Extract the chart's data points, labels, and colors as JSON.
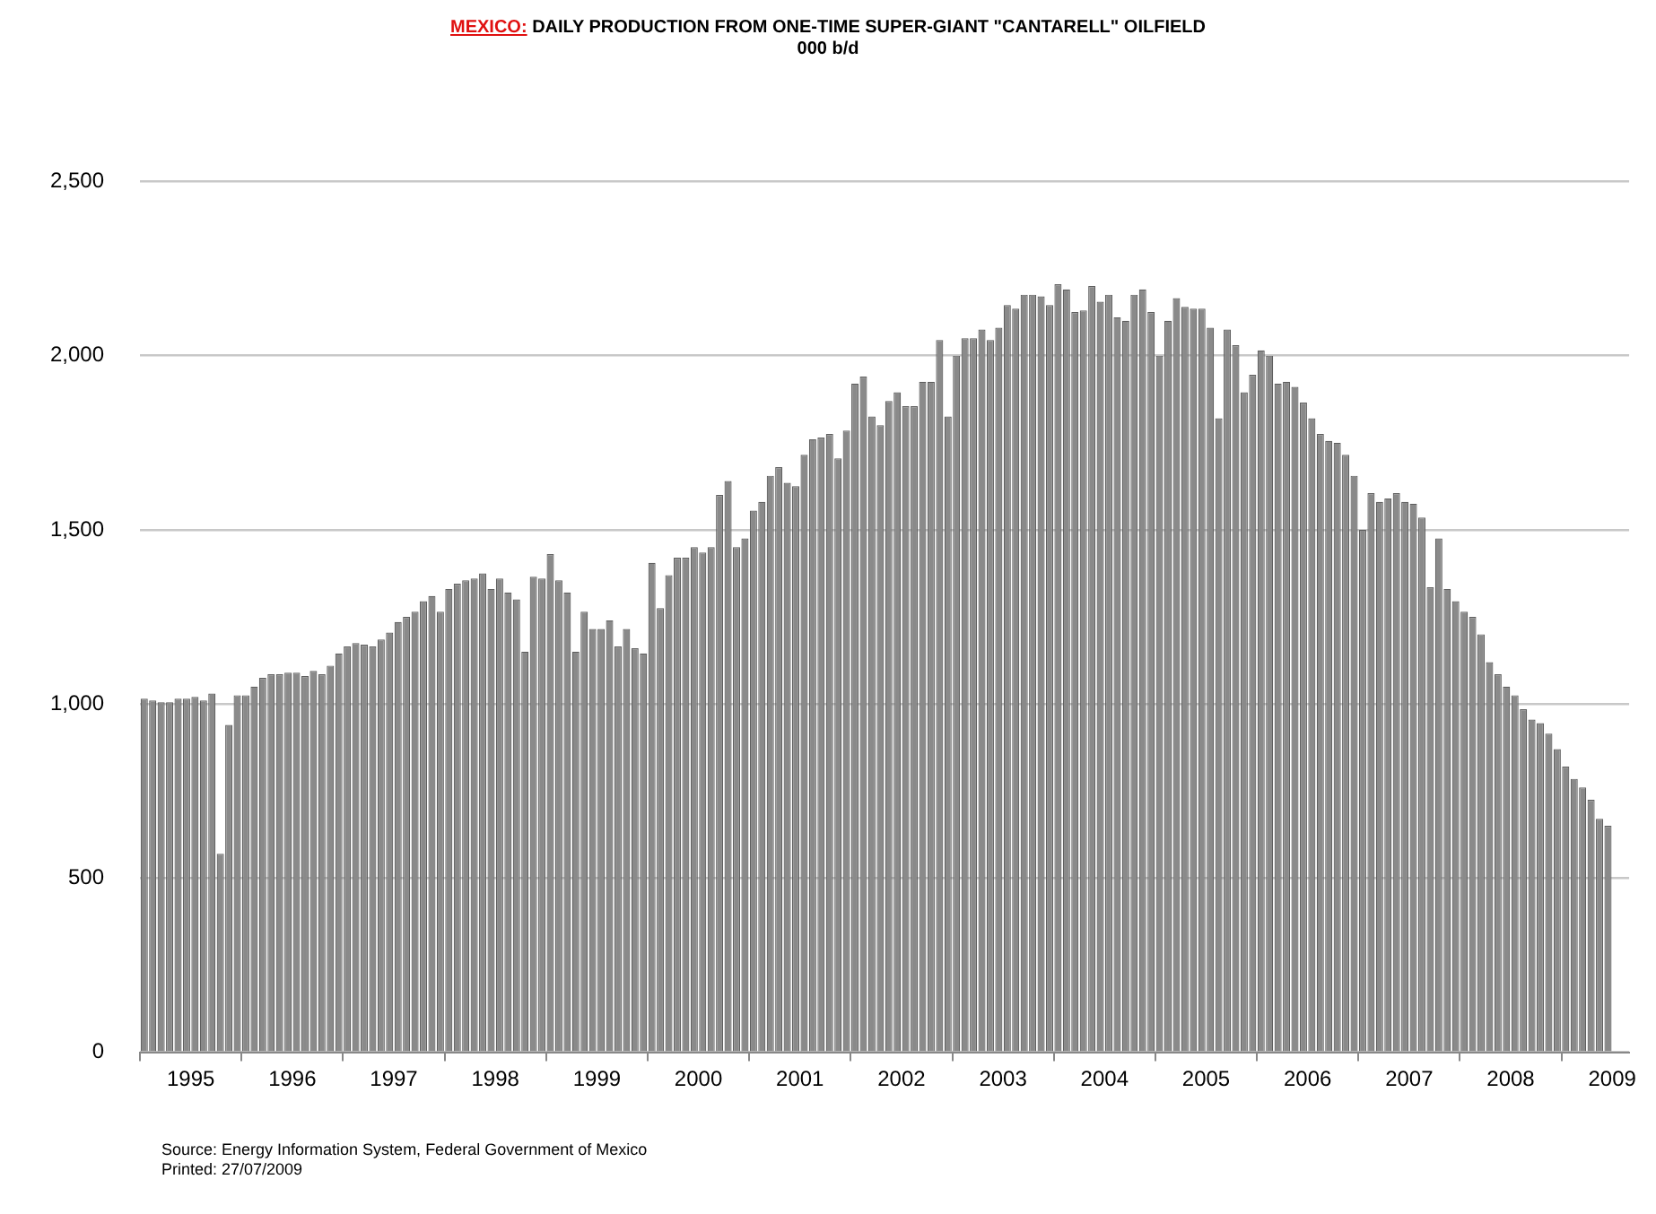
{
  "chart_data": {
    "type": "bar",
    "title": "MEXICO: DAILY PRODUCTION FROM ONE-TIME SUPER-GIANT \"CANTARELL\" OILFIELD",
    "subtitle": "000 b/d",
    "x": [
      "1995-01",
      "1995-02",
      "1995-03",
      "1995-04",
      "1995-05",
      "1995-06",
      "1995-07",
      "1995-08",
      "1995-09",
      "1995-10",
      "1995-11",
      "1995-12",
      "1996-01",
      "1996-02",
      "1996-03",
      "1996-04",
      "1996-05",
      "1996-06",
      "1996-07",
      "1996-08",
      "1996-09",
      "1996-10",
      "1996-11",
      "1996-12",
      "1997-01",
      "1997-02",
      "1997-03",
      "1997-04",
      "1997-05",
      "1997-06",
      "1997-07",
      "1997-08",
      "1997-09",
      "1997-10",
      "1997-11",
      "1997-12",
      "1998-01",
      "1998-02",
      "1998-03",
      "1998-04",
      "1998-05",
      "1998-06",
      "1998-07",
      "1998-08",
      "1998-09",
      "1998-10",
      "1998-11",
      "1998-12",
      "1999-01",
      "1999-02",
      "1999-03",
      "1999-04",
      "1999-05",
      "1999-06",
      "1999-07",
      "1999-08",
      "1999-09",
      "1999-10",
      "1999-11",
      "1999-12",
      "2000-01",
      "2000-02",
      "2000-03",
      "2000-04",
      "2000-05",
      "2000-06",
      "2000-07",
      "2000-08",
      "2000-09",
      "2000-10",
      "2000-11",
      "2000-12",
      "2001-01",
      "2001-02",
      "2001-03",
      "2001-04",
      "2001-05",
      "2001-06",
      "2001-07",
      "2001-08",
      "2001-09",
      "2001-10",
      "2001-11",
      "2001-12",
      "2002-01",
      "2002-02",
      "2002-03",
      "2002-04",
      "2002-05",
      "2002-06",
      "2002-07",
      "2002-08",
      "2002-09",
      "2002-10",
      "2002-11",
      "2002-12",
      "2003-01",
      "2003-02",
      "2003-03",
      "2003-04",
      "2003-05",
      "2003-06",
      "2003-07",
      "2003-08",
      "2003-09",
      "2003-10",
      "2003-11",
      "2003-12",
      "2004-01",
      "2004-02",
      "2004-03",
      "2004-04",
      "2004-05",
      "2004-06",
      "2004-07",
      "2004-08",
      "2004-09",
      "2004-10",
      "2004-11",
      "2004-12",
      "2005-01",
      "2005-02",
      "2005-03",
      "2005-04",
      "2005-05",
      "2005-06",
      "2005-07",
      "2005-08",
      "2005-09",
      "2005-10",
      "2005-11",
      "2005-12",
      "2006-01",
      "2006-02",
      "2006-03",
      "2006-04",
      "2006-05",
      "2006-06",
      "2006-07",
      "2006-08",
      "2006-09",
      "2006-10",
      "2006-11",
      "2006-12",
      "2007-01",
      "2007-02",
      "2007-03",
      "2007-04",
      "2007-05",
      "2007-06",
      "2007-07",
      "2007-08",
      "2007-09",
      "2007-10",
      "2007-11",
      "2007-12",
      "2008-01",
      "2008-02",
      "2008-03",
      "2008-04",
      "2008-05",
      "2008-06",
      "2008-07",
      "2008-08",
      "2008-09",
      "2008-10",
      "2008-11",
      "2008-12",
      "2009-01",
      "2009-02",
      "2009-03",
      "2009-04",
      "2009-05",
      "2009-06"
    ],
    "values": [
      1015,
      1010,
      1005,
      1005,
      1015,
      1015,
      1020,
      1010,
      1030,
      570,
      940,
      1025,
      1025,
      1050,
      1075,
      1085,
      1085,
      1090,
      1090,
      1080,
      1095,
      1085,
      1110,
      1145,
      1165,
      1175,
      1170,
      1165,
      1185,
      1205,
      1235,
      1250,
      1265,
      1295,
      1310,
      1265,
      1330,
      1345,
      1355,
      1360,
      1375,
      1330,
      1360,
      1320,
      1300,
      1150,
      1365,
      1360,
      1430,
      1355,
      1320,
      1150,
      1265,
      1215,
      1215,
      1240,
      1165,
      1215,
      1160,
      1145,
      1405,
      1275,
      1370,
      1420,
      1420,
      1450,
      1435,
      1450,
      1600,
      1640,
      1450,
      1475,
      1555,
      1580,
      1655,
      1680,
      1635,
      1625,
      1715,
      1760,
      1765,
      1775,
      1705,
      1785,
      1920,
      1940,
      1825,
      1800,
      1870,
      1895,
      1855,
      1855,
      1925,
      1925,
      2045,
      1825,
      2000,
      2050,
      2050,
      2075,
      2045,
      2080,
      2145,
      2135,
      2175,
      2175,
      2170,
      2145,
      2205,
      2190,
      2125,
      2130,
      2200,
      2155,
      2175,
      2110,
      2100,
      2175,
      2190,
      2125,
      2000,
      2100,
      2165,
      2140,
      2135,
      2135,
      2080,
      1820,
      2075,
      2030,
      1895,
      1945,
      2015,
      2000,
      1920,
      1925,
      1910,
      1865,
      1820,
      1775,
      1755,
      1750,
      1715,
      1655,
      1500,
      1605,
      1580,
      1590,
      1605,
      1580,
      1575,
      1535,
      1335,
      1475,
      1330,
      1295,
      1265,
      1250,
      1200,
      1120,
      1085,
      1050,
      1025,
      985,
      955,
      945,
      915,
      870,
      820,
      785,
      760,
      725,
      670,
      650
    ],
    "color": "#8a8a8a",
    "xlim": [
      "1995-01",
      "2009-09"
    ],
    "xticks": [
      {
        "value": "1995-01",
        "label": null
      },
      {
        "value": "1995-07",
        "label": "1995"
      },
      {
        "value": "1996-01",
        "label": null
      },
      {
        "value": "1996-07",
        "label": "1996"
      },
      {
        "value": "1997-01",
        "label": null
      },
      {
        "value": "1997-07",
        "label": "1997"
      },
      {
        "value": "1998-01",
        "label": null
      },
      {
        "value": "1998-07",
        "label": "1998"
      },
      {
        "value": "1999-01",
        "label": null
      },
      {
        "value": "1999-07",
        "label": "1999"
      },
      {
        "value": "2000-01",
        "label": null
      },
      {
        "value": "2000-07",
        "label": "2000"
      },
      {
        "value": "2001-01",
        "label": null
      },
      {
        "value": "2001-07",
        "label": "2001"
      },
      {
        "value": "2002-01",
        "label": null
      },
      {
        "value": "2002-07",
        "label": "2002"
      },
      {
        "value": "2003-01",
        "label": null
      },
      {
        "value": "2003-07",
        "label": "2003"
      },
      {
        "value": "2004-01",
        "label": null
      },
      {
        "value": "2004-07",
        "label": "2004"
      },
      {
        "value": "2005-01",
        "label": null
      },
      {
        "value": "2005-07",
        "label": "2005"
      },
      {
        "value": "2006-01",
        "label": null
      },
      {
        "value": "2006-07",
        "label": "2006"
      },
      {
        "value": "2007-01",
        "label": null
      },
      {
        "value": "2007-07",
        "label": "2007"
      },
      {
        "value": "2008-01",
        "label": null
      },
      {
        "value": "2008-07",
        "label": "2008"
      },
      {
        "value": "2009-01",
        "label": null
      },
      {
        "value": "2009-07",
        "label": "2009"
      }
    ],
    "ylim": [
      0,
      2500
    ],
    "yticks": [
      0,
      {
        "value": 500,
        "label": "500"
      },
      {
        "value": 1000,
        "label": "1,000"
      },
      {
        "value": 1500,
        "label": "1,500"
      },
      {
        "value": 2000,
        "label": "2,000"
      },
      {
        "value": 2500,
        "label": "2,500"
      }
    ],
    "grid": "y",
    "legend": false,
    "annotations": [
      "Source: Energy Information System, Federal Government of Mexico",
      "Printed: 27/07/2009"
    ]
  }
}
